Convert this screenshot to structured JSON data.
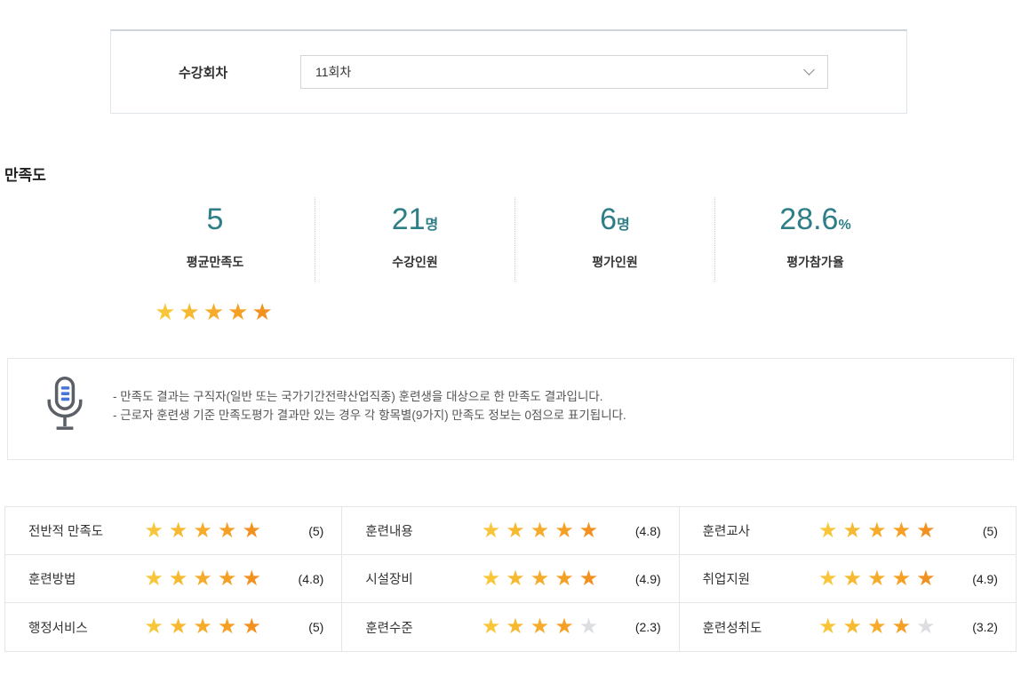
{
  "filter": {
    "label": "수강회차",
    "selected_value": "11회차"
  },
  "section_title": "만족도",
  "stats": [
    {
      "value": "5",
      "unit": "",
      "label": "평균만족도"
    },
    {
      "value": "21",
      "unit": "명",
      "label": "수강인원"
    },
    {
      "value": "6",
      "unit": "명",
      "label": "평가인원"
    },
    {
      "value": "28.6",
      "unit": "%",
      "label": "평가참가율"
    }
  ],
  "overall_stars": 5,
  "notice": {
    "icon": "microphone-icon",
    "lines": [
      "- 만족도 결과는 구직자(일반 또는 국가기간전략산업직종) 훈련생을 대상으로 한 만족도 결과입니다.",
      "- 근로자 훈련생 기준 만족도평가 결과만 있는 경우 각 항목별(9가지) 만족도 정보는 0점으로 표기됩니다."
    ]
  },
  "ratings": [
    [
      {
        "label": "전반적 만족도",
        "stars": 5,
        "score": "(5)"
      },
      {
        "label": "훈련내용",
        "stars": 5,
        "score": "(4.8)"
      },
      {
        "label": "훈련교사",
        "stars": 5,
        "score": "(5)"
      }
    ],
    [
      {
        "label": "훈련방법",
        "stars": 5,
        "score": "(4.8)"
      },
      {
        "label": "시설장비",
        "stars": 5,
        "score": "(4.9)"
      },
      {
        "label": "취업지원",
        "stars": 5,
        "score": "(4.9)"
      }
    ],
    [
      {
        "label": "행정서비스",
        "stars": 5,
        "score": "(5)"
      },
      {
        "label": "훈련수준",
        "stars": 4,
        "score": "(2.3)"
      },
      {
        "label": "훈련성취도",
        "stars": 4,
        "score": "(3.2)"
      }
    ]
  ],
  "colors": {
    "accent_teal": "#2e7e87",
    "star_palette": [
      "#f8c638",
      "#f7b930",
      "#f6ac2a",
      "#f5a024",
      "#f39120"
    ],
    "star_empty": "#dcdee1"
  }
}
